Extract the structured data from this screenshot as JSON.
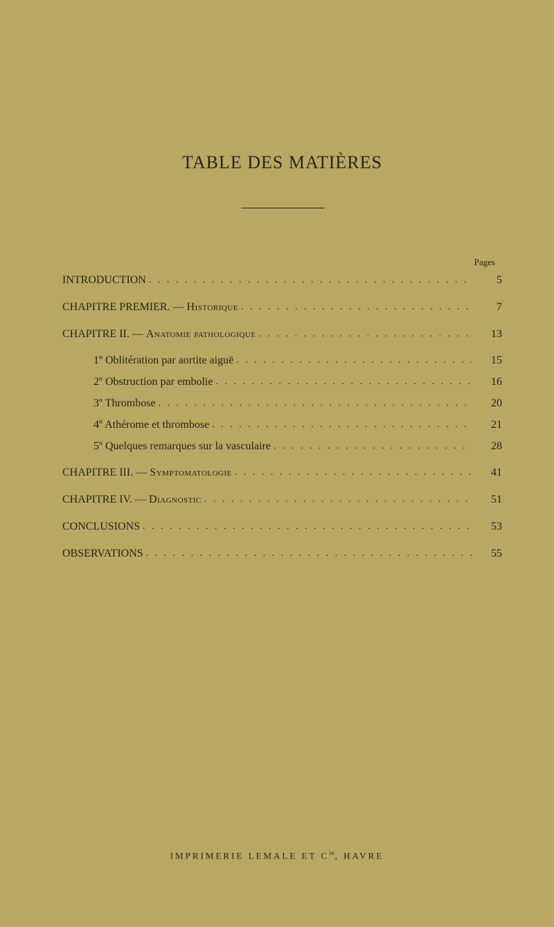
{
  "title": "TABLE DES MATIÈRES",
  "pagesHeader": "Pages",
  "colors": {
    "background": "#b8a862",
    "text": "#2a2418"
  },
  "typography": {
    "titleFontSize": 26,
    "bodyFontSize": 16,
    "imprintFontSize": 13
  },
  "entries": [
    {
      "label": "INTRODUCTION",
      "page": "5",
      "level": "top",
      "caps": true
    },
    {
      "labelPrefix": "CHAPITRE PREMIER. — ",
      "labelMain": "Historique",
      "page": "7",
      "level": "top",
      "caps": true,
      "sc": true,
      "spacedAbove": true
    },
    {
      "labelPrefix": "CHAPITRE II. — ",
      "labelMain": "Anatomie pathologique",
      "page": "13",
      "level": "top",
      "caps": true,
      "sc": true,
      "spacedAbove": true
    },
    {
      "label": "1º Oblitération par aortite aiguë",
      "page": "15",
      "level": "sub",
      "spacedAbove": true
    },
    {
      "label": "2º Obstruction par embolie",
      "page": "16",
      "level": "sub"
    },
    {
      "label": "3º Thrombose",
      "page": "20",
      "level": "sub"
    },
    {
      "label": "4º Athérome et thrombose",
      "page": "21",
      "level": "sub"
    },
    {
      "label": "5º Quelques remarques sur la vasculaire",
      "page": "28",
      "level": "sub"
    },
    {
      "labelPrefix": "CHAPITRE III. — ",
      "labelMain": "Symptomatologie",
      "page": "41",
      "level": "top",
      "caps": true,
      "sc": true,
      "spacedAbove": true
    },
    {
      "labelPrefix": "CHAPITRE IV. — ",
      "labelMain": "Diagnostic",
      "page": "51",
      "level": "top",
      "caps": true,
      "sc": true,
      "spacedAbove": true
    },
    {
      "label": "CONCLUSIONS",
      "page": "53",
      "level": "top",
      "caps": true,
      "spacedAbove": true
    },
    {
      "label": "OBSERVATIONS",
      "page": "55",
      "level": "top",
      "caps": true,
      "spacedAbove": true
    }
  ],
  "imprint": {
    "text": "IMPRIMERIE LEMALE ET C",
    "sup": "ie",
    "tail": ", HAVRE"
  }
}
